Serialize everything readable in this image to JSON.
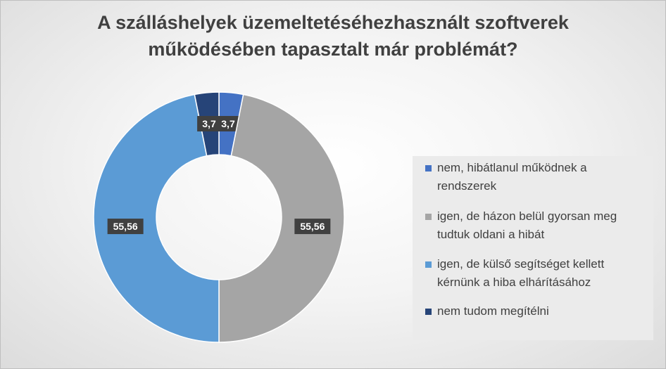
{
  "chart_data": {
    "type": "pie",
    "donut": true,
    "title": [
      "A szálláshelyek üzemeltetéséhezhasznált szoftverek",
      "működésében tapasztalt már problémát?"
    ],
    "categories": [
      "nem, hibátlanul működnek a rendszerek",
      "igen, de házon belül gyorsan meg tudtuk oldani a hibát",
      "igen, de külső segítséget kellett kérnünk a hiba elhárításához",
      "nem tudom megítélni"
    ],
    "values": [
      3.7,
      55.56,
      55.56,
      3.7
    ],
    "value_labels": [
      "3,7",
      "55,56",
      "55,56",
      "3,7"
    ],
    "colors": [
      "#4472c4",
      "#a5a5a5",
      "#5b9bd5",
      "#264478"
    ],
    "legend_lines": [
      [
        "nem, hibátlanul működnek a",
        "rendszerek"
      ],
      [
        "igen, de házon belül gyorsan meg",
        "tudtuk oldani a hibát"
      ],
      [
        "igen, de külső segítséget kellett",
        "kérnünk a hiba elhárításához"
      ],
      [
        "nem tudom megítélni"
      ]
    ],
    "legend_position": "right"
  }
}
